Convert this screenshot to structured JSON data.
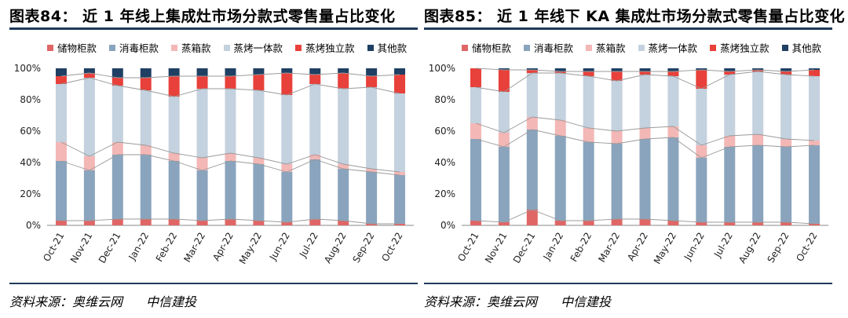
{
  "colors": {
    "储物柜款": "#e06666",
    "消毒柜款": "#8aa4bd",
    "蒸箱款": "#f3b7b6",
    "蒸烤一体款": "#c4d1de",
    "蒸烤独立款": "#e8403a",
    "其他款": "#1f3f63"
  },
  "panels": [
    {
      "title": "图表84： 近 1 年线上集成灶市场分款式零售量占比变化",
      "source_label": "资料来源：奥维云网",
      "source_org": "中信建投",
      "chart_data": {
        "type": "bar",
        "stacked": true,
        "categories": [
          "Oct-21",
          "Nov-21",
          "Dec-21",
          "Jan-22",
          "Feb-22",
          "Mar-22",
          "Apr-22",
          "May-22",
          "Jun-22",
          "Jul-22",
          "Aug-22",
          "Sep-22",
          "Oct-22"
        ],
        "yticks": [
          "0%",
          "20%",
          "40%",
          "60%",
          "80%",
          "100%"
        ],
        "ylim": [
          0,
          100
        ],
        "legend_position": "top",
        "series": [
          {
            "name": "储物柜款",
            "values": [
              3,
              3,
              4,
              4,
              4,
              3,
              4,
              3,
              2,
              4,
              3,
              1,
              1
            ]
          },
          {
            "name": "消毒柜款",
            "values": [
              38,
              32,
              41,
              41,
              37,
              32,
              37,
              36,
              32,
              38,
              33,
              33,
              31
            ]
          },
          {
            "name": "蒸箱款",
            "values": [
              12,
              9,
              8,
              6,
              5,
              8,
              5,
              4,
              5,
              3,
              3,
              2,
              2
            ]
          },
          {
            "name": "蒸烤一体款",
            "values": [
              37,
              50,
              36,
              35,
              36,
              44,
              41,
              43,
              44,
              45,
              48,
              52,
              50
            ]
          },
          {
            "name": "蒸烤独立款",
            "values": [
              5,
              3,
              5,
              8,
              13,
              8,
              8,
              10,
              14,
              6,
              10,
              7,
              12
            ]
          },
          {
            "name": "其他款",
            "values": [
              5,
              3,
              6,
              6,
              5,
              5,
              5,
              4,
              3,
              4,
              3,
              5,
              4
            ]
          }
        ]
      }
    },
    {
      "title": "图表85： 近 1 年线下 KA 集成灶市场分款式零售量占比变化",
      "source_label": "资料来源：奥维云网",
      "source_org": "中信建投",
      "chart_data": {
        "type": "bar",
        "stacked": true,
        "categories": [
          "Oct-21",
          "Nov-21",
          "Dec-21",
          "Jan-22",
          "Feb-22",
          "Mar-22",
          "Apr-22",
          "May-22",
          "Jun-22",
          "Jul-22",
          "Aug-22",
          "Sep-22",
          "Oct-22"
        ],
        "yticks": [
          "0%",
          "20%",
          "40%",
          "60%",
          "80%",
          "100%"
        ],
        "ylim": [
          0,
          100
        ],
        "legend_position": "top",
        "series": [
          {
            "name": "储物柜款",
            "values": [
              3,
              2,
              10,
              3,
              3,
              4,
              4,
              3,
              2,
              2,
              2,
              2,
              1
            ]
          },
          {
            "name": "消毒柜款",
            "values": [
              52,
              48,
              51,
              54,
              50,
              48,
              51,
              53,
              41,
              48,
              49,
              48,
              50
            ]
          },
          {
            "name": "蒸箱款",
            "values": [
              10,
              9,
              8,
              10,
              9,
              8,
              7,
              7,
              8,
              7,
              7,
              5,
              3
            ]
          },
          {
            "name": "蒸烤一体款",
            "values": [
              23,
              26,
              28,
              30,
              33,
              32,
              34,
              32,
              36,
              39,
              40,
              41,
              41
            ]
          },
          {
            "name": "蒸烤独立款",
            "values": [
              12,
              14,
              2,
              1,
              3,
              6,
              2,
              3,
              12,
              2,
              1,
              2,
              4
            ]
          },
          {
            "name": "其他款",
            "values": [
              0,
              1,
              1,
              2,
              2,
              2,
              2,
              2,
              1,
              2,
              1,
              2,
              1
            ]
          }
        ]
      }
    }
  ]
}
